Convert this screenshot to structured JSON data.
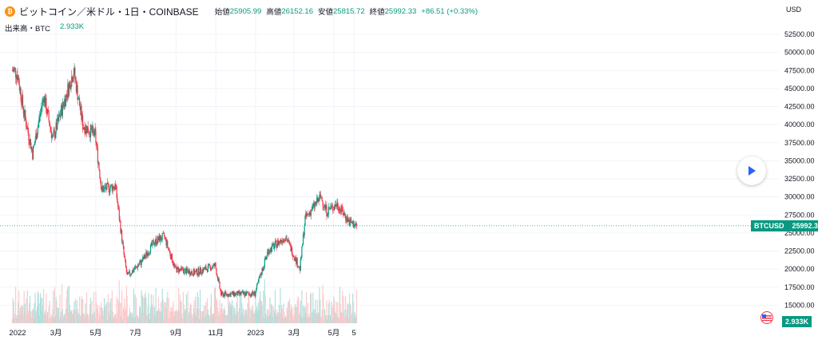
{
  "header": {
    "coin_icon": "bitcoin-icon",
    "title": "ビットコイン／米ドル・1日・COINBASE",
    "open_label": "始値",
    "open": "25905.99",
    "high_label": "高値",
    "high": "26152.16",
    "low_label": "安値",
    "low": "25815.72",
    "close_label": "終値",
    "close": "25992.33",
    "change": "+86.51 (+0.33%)"
  },
  "volume_header": {
    "label": "出来高・BTC",
    "value": "2.933K"
  },
  "currency": "USD",
  "price_tag": {
    "symbol": "BTCUSD",
    "value": "25992.33"
  },
  "volume_tag": "2.933K",
  "colors": {
    "up": "#089981",
    "down": "#f23645",
    "vol_up": "#b2dfdb",
    "vol_down": "#fccbcd",
    "grid": "#f0f3fa"
  },
  "chart_data": {
    "type": "candlestick",
    "interval": "1D",
    "y_axis_ticks": [
      15000,
      17500,
      20000,
      22500,
      25000,
      27500,
      30000,
      32500,
      35000,
      37500,
      40000,
      42500,
      45000,
      47500,
      50000,
      52500
    ],
    "y_axis_tick_labels": [
      "15000.00",
      "17500.00",
      "20000.00",
      "22500.00",
      "25000.00",
      "27500.00",
      "30000.00",
      "32500.00",
      "35000.00",
      "37500.00",
      "40000.00",
      "42500.00",
      "45000.00",
      "47500.00",
      "50000.00",
      "52500.00"
    ],
    "x_axis_labels": [
      "2022",
      "3月",
      "5月",
      "7月",
      "9月",
      "11月",
      "2023",
      "3月",
      "5月",
      "5"
    ],
    "last_price": 25992.33,
    "approx_close_path": [
      {
        "d": "2021-12-27",
        "p": 47500
      },
      {
        "d": "2022-01-01",
        "p": 47000
      },
      {
        "d": "2022-01-10",
        "p": 42000
      },
      {
        "d": "2022-01-24",
        "p": 36000
      },
      {
        "d": "2022-02-10",
        "p": 44000
      },
      {
        "d": "2022-02-24",
        "p": 38000
      },
      {
        "d": "2022-03-28",
        "p": 47500
      },
      {
        "d": "2022-04-11",
        "p": 40000
      },
      {
        "d": "2022-04-30",
        "p": 38500
      },
      {
        "d": "2022-05-10",
        "p": 31000
      },
      {
        "d": "2022-05-31",
        "p": 31500
      },
      {
        "d": "2022-06-13",
        "p": 22000
      },
      {
        "d": "2022-06-18",
        "p": 19000
      },
      {
        "d": "2022-07-10",
        "p": 21000
      },
      {
        "d": "2022-07-30",
        "p": 23800
      },
      {
        "d": "2022-08-14",
        "p": 24500
      },
      {
        "d": "2022-08-31",
        "p": 20000
      },
      {
        "d": "2022-09-30",
        "p": 19500
      },
      {
        "d": "2022-10-31",
        "p": 20500
      },
      {
        "d": "2022-11-09",
        "p": 16500
      },
      {
        "d": "2022-12-31",
        "p": 16600
      },
      {
        "d": "2023-01-20",
        "p": 22500
      },
      {
        "d": "2023-02-16",
        "p": 24500
      },
      {
        "d": "2023-03-10",
        "p": 20000
      },
      {
        "d": "2023-03-18",
        "p": 27000
      },
      {
        "d": "2023-04-11",
        "p": 30000
      },
      {
        "d": "2023-04-20",
        "p": 28000
      },
      {
        "d": "2023-05-06",
        "p": 29000
      },
      {
        "d": "2023-05-25",
        "p": 26500
      },
      {
        "d": "2023-06-05",
        "p": 25992
      }
    ]
  }
}
